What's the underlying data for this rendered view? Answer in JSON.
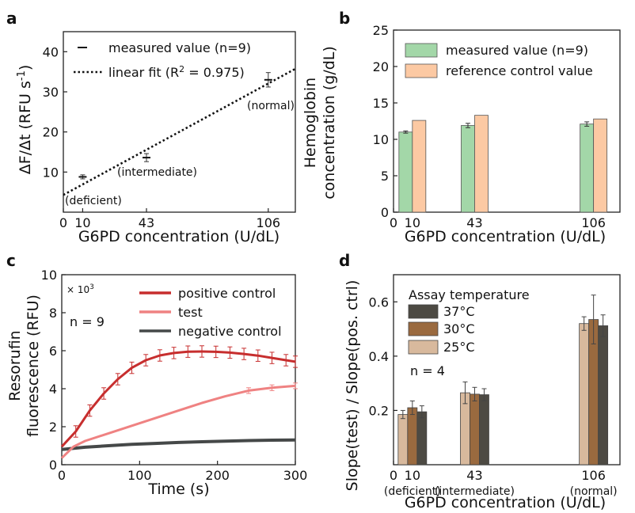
{
  "figure": {
    "panels": [
      {
        "letter": "a"
      },
      {
        "letter": "b"
      },
      {
        "letter": "c"
      },
      {
        "letter": "d"
      }
    ]
  },
  "chart_data": [
    {
      "panel": "a",
      "type": "scatter",
      "xlabel": "G6PD concentration (U/dL)",
      "ylabel": "ΔF/Δt (RFU s-1)",
      "xlim": [
        0,
        120
      ],
      "ylim": [
        0,
        45
      ],
      "xticks": [
        "0",
        "10",
        "43",
        "106"
      ],
      "yticks": [
        "10",
        "20",
        "30",
        "40"
      ],
      "series": [
        {
          "name": "measured value (n=9)",
          "x": [
            10,
            43,
            106
          ],
          "y": [
            8.8,
            13.6,
            33.0
          ],
          "err": [
            0.5,
            1.0,
            1.8
          ]
        },
        {
          "name": "linear fit (R2 = 0.975)",
          "fit": {
            "slope": 0.262,
            "intercept": 4.3,
            "x_range": [
              0,
              120
            ]
          }
        }
      ],
      "annotations": [
        "(deficient)",
        "(intermediate)",
        "(normal)"
      ],
      "legend": "top-left"
    },
    {
      "panel": "b",
      "type": "bar",
      "xlabel": "G6PD concentration (U/dL)",
      "ylabel": "Hemoglobin concentration (g/dL)",
      "ylabel_lines": [
        "Hemoglobin",
        "concentration (g/dL)"
      ],
      "xlim": [
        0,
        120
      ],
      "ylim": [
        0,
        25
      ],
      "xticks": [
        "0",
        "10",
        "43",
        "106"
      ],
      "yticks": [
        "0",
        "5",
        "10",
        "15",
        "20",
        "25"
      ],
      "categories": [
        "10",
        "43",
        "106"
      ],
      "series": [
        {
          "name": "measured value (n=9)",
          "color": "#a3d7a8",
          "values": [
            11.0,
            11.9,
            12.1
          ],
          "err": [
            0.15,
            0.3,
            0.3
          ]
        },
        {
          "name": "reference control value",
          "color": "#fcc9a3",
          "values": [
            12.6,
            13.3,
            12.8
          ]
        }
      ],
      "legend": "top"
    },
    {
      "panel": "c",
      "type": "line",
      "xlabel": "Time (s)",
      "ylabel": "Resorufin fluorescence (RFU)",
      "ylabel_lines": [
        "Resorufin",
        "fluorescence (RFU)"
      ],
      "y_multiplier": "× 103",
      "xlim": [
        0,
        300
      ],
      "ylim": [
        0,
        10
      ],
      "xticks": [
        "0",
        "100",
        "200",
        "300"
      ],
      "yticks": [
        "0",
        "2",
        "4",
        "6",
        "8",
        "10"
      ],
      "annotation": "n = 9",
      "series": [
        {
          "name": "positive control",
          "color": "#c72e2e",
          "x": [
            0,
            18,
            36,
            54,
            72,
            90,
            108,
            126,
            144,
            162,
            180,
            198,
            216,
            234,
            252,
            270,
            288,
            300
          ],
          "y": [
            0.95,
            1.75,
            2.85,
            3.75,
            4.5,
            5.1,
            5.5,
            5.75,
            5.88,
            5.95,
            5.96,
            5.94,
            5.9,
            5.83,
            5.74,
            5.62,
            5.5,
            5.42
          ],
          "err": 0.3
        },
        {
          "name": "test",
          "color": "#ef8282",
          "x": [
            0,
            15,
            30,
            60,
            90,
            120,
            150,
            180,
            210,
            240,
            270,
            300
          ],
          "y": [
            0.35,
            0.95,
            1.25,
            1.65,
            2.05,
            2.45,
            2.85,
            3.25,
            3.6,
            3.9,
            4.05,
            4.15
          ],
          "err": 0.15
        },
        {
          "name": "negative control",
          "color": "#454848",
          "x": [
            0,
            30,
            60,
            90,
            120,
            150,
            180,
            210,
            240,
            270,
            300
          ],
          "y": [
            0.8,
            0.92,
            1.0,
            1.07,
            1.12,
            1.17,
            1.21,
            1.24,
            1.27,
            1.29,
            1.3
          ],
          "err": 0.05
        }
      ],
      "legend": "top-right"
    },
    {
      "panel": "d",
      "type": "bar",
      "xlabel": "G6PD concentration (U/dL)",
      "ylabel": "Slope(test) / Slope(pos. ctrl)",
      "xlim": [
        0,
        120
      ],
      "ylim": [
        0,
        0.7
      ],
      "xticks": [
        "0",
        "10",
        "43",
        "106"
      ],
      "xtick_sublabels": [
        "(deficient)",
        "(intermediate)",
        "(normal)"
      ],
      "yticks": [
        "0.2",
        "0.4",
        "0.6"
      ],
      "legend_title": "Assay temperature",
      "annotation": "n = 4",
      "categories": [
        "10",
        "43",
        "106"
      ],
      "series": [
        {
          "name": "25°C",
          "color": "#d8b99d",
          "values": [
            0.185,
            0.265,
            0.52
          ],
          "err": [
            0.015,
            0.04,
            0.025
          ]
        },
        {
          "name": "30°C",
          "color": "#9a6a3f",
          "values": [
            0.21,
            0.26,
            0.535
          ],
          "err": [
            0.025,
            0.025,
            0.09
          ]
        },
        {
          "name": "37°C",
          "color": "#4d4a43",
          "values": [
            0.195,
            0.258,
            0.512
          ],
          "err": [
            0.022,
            0.022,
            0.04
          ]
        }
      ],
      "legend_order": [
        "37°C",
        "30°C",
        "25°C"
      ],
      "legend": "top-left"
    }
  ]
}
